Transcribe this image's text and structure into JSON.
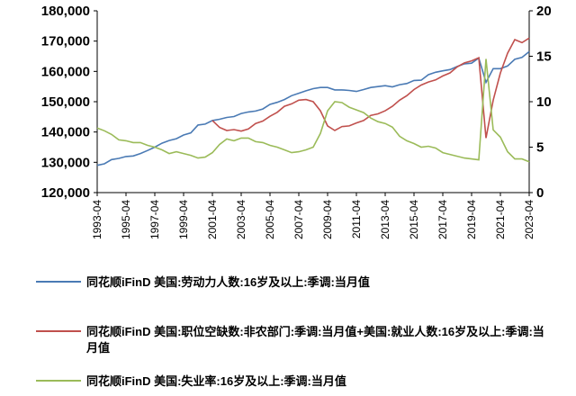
{
  "chart_data": {
    "type": "line",
    "x": [
      "1993-04",
      "1993-10",
      "1994-04",
      "1994-10",
      "1995-04",
      "1995-10",
      "1996-04",
      "1996-10",
      "1997-04",
      "1997-10",
      "1998-04",
      "1998-10",
      "1999-04",
      "1999-10",
      "2000-04",
      "2000-10",
      "2001-04",
      "2001-10",
      "2002-04",
      "2002-10",
      "2003-04",
      "2003-10",
      "2004-04",
      "2004-10",
      "2005-04",
      "2005-10",
      "2006-04",
      "2006-10",
      "2007-04",
      "2007-10",
      "2008-04",
      "2008-10",
      "2009-04",
      "2009-10",
      "2010-04",
      "2010-10",
      "2011-04",
      "2011-10",
      "2012-04",
      "2012-10",
      "2013-04",
      "2013-10",
      "2014-04",
      "2014-10",
      "2015-04",
      "2015-10",
      "2016-04",
      "2016-10",
      "2017-04",
      "2017-10",
      "2018-04",
      "2018-10",
      "2019-04",
      "2019-10",
      "2020-04",
      "2020-10",
      "2021-04",
      "2021-10",
      "2022-04",
      "2022-10",
      "2023-04"
    ],
    "xlim": [
      "1993-04",
      "2023-04"
    ],
    "xticks": [
      "1993-04",
      "1995-04",
      "1997-04",
      "1999-04",
      "2001-04",
      "2003-04",
      "2005-04",
      "2007-04",
      "2009-04",
      "2011-04",
      "2013-04",
      "2015-04",
      "2017-04",
      "2019-04",
      "2021-04",
      "2023-04"
    ],
    "ylim": [
      120000,
      180000
    ],
    "yticks": [
      {
        "value": 120000,
        "label": "120,000"
      },
      {
        "value": 130000,
        "label": "130,000"
      },
      {
        "value": 140000,
        "label": "140,000"
      },
      {
        "value": 150000,
        "label": "150,000"
      },
      {
        "value": 160000,
        "label": "160,000"
      },
      {
        "value": 170000,
        "label": "170,000"
      },
      {
        "value": 180000,
        "label": "180,000"
      }
    ],
    "y2lim": [
      0,
      20
    ],
    "y2ticks": [
      0,
      5,
      10,
      15,
      20
    ],
    "series": [
      {
        "name": "同花顺iFinD 美国:劳动力人数:16岁及以上:季调:当月值",
        "color": "#4a7ab4",
        "values": [
          129000,
          129500,
          130900,
          131300,
          131900,
          132100,
          132900,
          133900,
          135000,
          136300,
          137200,
          137800,
          139000,
          139700,
          142300,
          142600,
          143800,
          144200,
          144800,
          145100,
          146100,
          146600,
          146900,
          147600,
          149100,
          149800,
          150700,
          152000,
          152800,
          153600,
          154300,
          154700,
          154700,
          153900,
          153900,
          153700,
          153400,
          154000,
          154700,
          155000,
          155300,
          154900,
          155600,
          156000,
          157000,
          157100,
          158900,
          159700,
          160200,
          160600,
          161600,
          162500,
          162700,
          164400,
          156400,
          160900,
          160900,
          161800,
          164000,
          164600,
          166500
        ]
      },
      {
        "name": "同花顺iFinD 美国:职位空缺数:非农部门:季调:当月值+美国:就业人数:16岁及以上:季调:当月值",
        "color": "#c0504d",
        "values": [
          null,
          null,
          null,
          null,
          null,
          null,
          null,
          null,
          null,
          null,
          null,
          null,
          null,
          null,
          null,
          null,
          143800,
          141500,
          140500,
          140800,
          140300,
          141000,
          142800,
          143600,
          145200,
          146500,
          148500,
          149300,
          150500,
          150700,
          150000,
          147000,
          142000,
          140500,
          141800,
          142000,
          143000,
          143800,
          145500,
          146000,
          147000,
          148500,
          150500,
          152000,
          154000,
          155500,
          156500,
          157200,
          158500,
          159500,
          161500,
          162800,
          163500,
          164500,
          138000,
          150500,
          159500,
          166000,
          170500,
          169500,
          171000
        ]
      },
      {
        "name": "同花顺iFinD 美国:失业率:16岁及以上:季调:当月值",
        "color": "#9bbb59",
        "axis": "y2",
        "values": [
          7.1,
          6.8,
          6.4,
          5.8,
          5.7,
          5.5,
          5.5,
          5.2,
          5.0,
          4.7,
          4.3,
          4.5,
          4.3,
          4.1,
          3.8,
          3.9,
          4.4,
          5.3,
          5.9,
          5.7,
          6.0,
          6.0,
          5.6,
          5.5,
          5.2,
          5.0,
          4.7,
          4.4,
          4.5,
          4.7,
          5.0,
          6.5,
          9.0,
          10.0,
          9.9,
          9.4,
          9.1,
          8.8,
          8.2,
          7.8,
          7.6,
          7.2,
          6.2,
          5.7,
          5.4,
          5.0,
          5.1,
          4.9,
          4.4,
          4.2,
          4.0,
          3.8,
          3.7,
          3.6,
          14.7,
          6.9,
          6.1,
          4.5,
          3.7,
          3.7,
          3.4
        ]
      }
    ]
  }
}
